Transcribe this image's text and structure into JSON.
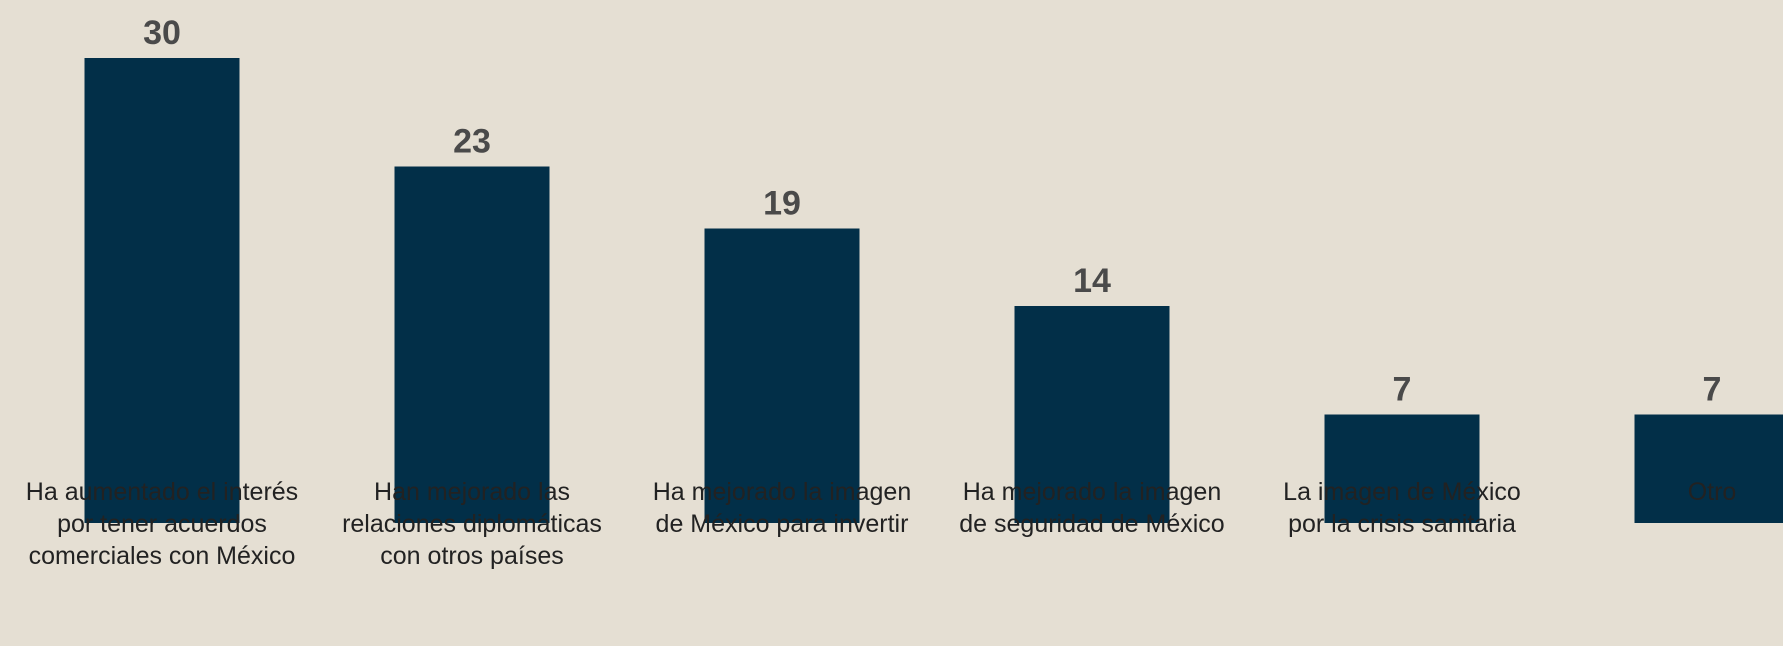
{
  "chart_data": {
    "type": "bar",
    "categories": [
      "Ha aumentado el interés\npor tener acuerdos\ncomerciales con México",
      "Han mejorado las\nrelaciones diplomáticas\ncon otros países",
      "Ha mejorado la imagen\nde México para invertir",
      "Ha mejorado la imagen\nde seguridad de México",
      "La imagen de México\npor la crisis sanitaria",
      "Otro"
    ],
    "values": [
      30,
      23,
      19,
      14,
      7,
      7
    ],
    "color": "#022f48"
  }
}
